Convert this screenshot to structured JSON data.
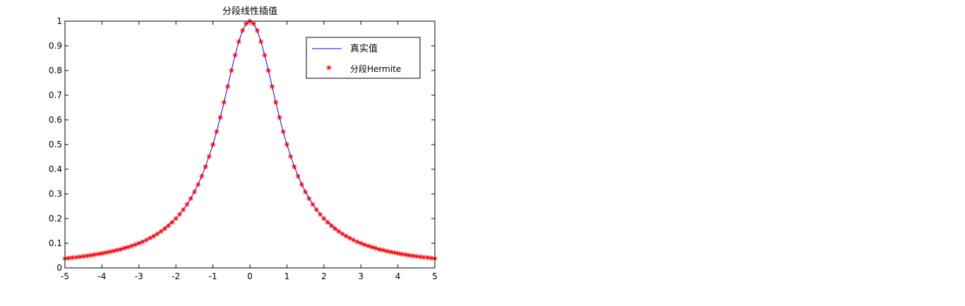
{
  "chart_data": {
    "type": "line",
    "title": "分段线性插值",
    "xlabel": "",
    "ylabel": "",
    "xlim": [
      -5,
      5
    ],
    "ylim": [
      0,
      1
    ],
    "grid": false,
    "legend_position": "top-right",
    "x_ticks": [
      -5,
      -4,
      -3,
      -2,
      -1,
      0,
      1,
      2,
      3,
      4,
      5
    ],
    "x_tick_labels": [
      "-5",
      "-4",
      "-3",
      "-2",
      "-1",
      "0",
      "1",
      "2",
      "3",
      "4",
      "5"
    ],
    "y_ticks": [
      0,
      0.1,
      0.2,
      0.3,
      0.4,
      0.5,
      0.6,
      0.7,
      0.8,
      0.9,
      1
    ],
    "y_tick_labels": [
      "0",
      "0.1",
      "0.2",
      "0.3",
      "0.4",
      "0.5",
      "0.6",
      "0.7",
      "0.8",
      "0.9",
      "1"
    ],
    "series": [
      {
        "name": "真实值",
        "style": "line",
        "color": "#0000ff",
        "x": [
          -5,
          -4.5,
          -4,
          -3.5,
          -3,
          -2.5,
          -2,
          -1.8,
          -1.6,
          -1.4,
          -1.2,
          -1,
          -0.9,
          -0.8,
          -0.7,
          -0.6,
          -0.5,
          -0.4,
          -0.3,
          -0.2,
          -0.1,
          0,
          0.1,
          0.2,
          0.3,
          0.4,
          0.5,
          0.6,
          0.7,
          0.8,
          0.9,
          1,
          1.2,
          1.4,
          1.6,
          1.8,
          2,
          2.5,
          3,
          3.5,
          4,
          4.5,
          5
        ],
        "y": [
          0.038,
          0.047,
          0.059,
          0.075,
          0.1,
          0.138,
          0.2,
          0.236,
          0.281,
          0.338,
          0.41,
          0.5,
          0.552,
          0.61,
          0.671,
          0.735,
          0.8,
          0.862,
          0.917,
          0.962,
          0.99,
          1,
          0.99,
          0.962,
          0.917,
          0.862,
          0.8,
          0.735,
          0.671,
          0.61,
          0.552,
          0.5,
          0.41,
          0.338,
          0.281,
          0.236,
          0.2,
          0.138,
          0.1,
          0.075,
          0.059,
          0.047,
          0.038
        ]
      },
      {
        "name": "分段Hermite",
        "style": "marker",
        "marker": "*",
        "color": "#ff0000",
        "x": [
          -5,
          -4.9,
          -4.8,
          -4.7,
          -4.6,
          -4.5,
          -4.4,
          -4.3,
          -4.2,
          -4.1,
          -4,
          -3.9,
          -3.8,
          -3.7,
          -3.6,
          -3.5,
          -3.4,
          -3.3,
          -3.2,
          -3.1,
          -3,
          -2.9,
          -2.8,
          -2.7,
          -2.6,
          -2.5,
          -2.4,
          -2.3,
          -2.2,
          -2.1,
          -2,
          -1.9,
          -1.8,
          -1.7,
          -1.6,
          -1.5,
          -1.4,
          -1.3,
          -1.2,
          -1.1,
          -1,
          -0.9,
          -0.8,
          -0.7,
          -0.6,
          -0.5,
          -0.4,
          -0.3,
          -0.2,
          -0.1,
          0,
          0.1,
          0.2,
          0.3,
          0.4,
          0.5,
          0.6,
          0.7,
          0.8,
          0.9,
          1,
          1.1,
          1.2,
          1.3,
          1.4,
          1.5,
          1.6,
          1.7,
          1.8,
          1.9,
          2,
          2.1,
          2.2,
          2.3,
          2.4,
          2.5,
          2.6,
          2.7,
          2.8,
          2.9,
          3,
          3.1,
          3.2,
          3.3,
          3.4,
          3.5,
          3.6,
          3.7,
          3.8,
          3.9,
          4,
          4.1,
          4.2,
          4.3,
          4.4,
          4.5,
          4.6,
          4.7,
          4.8,
          4.9,
          5
        ],
        "y": [
          0.038,
          0.04,
          0.042,
          0.043,
          0.045,
          0.047,
          0.049,
          0.051,
          0.054,
          0.056,
          0.059,
          0.062,
          0.065,
          0.068,
          0.072,
          0.075,
          0.08,
          0.084,
          0.089,
          0.094,
          0.1,
          0.106,
          0.113,
          0.121,
          0.129,
          0.138,
          0.148,
          0.159,
          0.171,
          0.185,
          0.2,
          0.217,
          0.236,
          0.257,
          0.281,
          0.308,
          0.338,
          0.372,
          0.41,
          0.452,
          0.5,
          0.552,
          0.61,
          0.671,
          0.735,
          0.8,
          0.862,
          0.917,
          0.962,
          0.99,
          1,
          0.99,
          0.962,
          0.917,
          0.862,
          0.8,
          0.735,
          0.671,
          0.61,
          0.552,
          0.5,
          0.452,
          0.41,
          0.372,
          0.338,
          0.308,
          0.281,
          0.257,
          0.236,
          0.217,
          0.2,
          0.185,
          0.171,
          0.159,
          0.148,
          0.138,
          0.129,
          0.121,
          0.113,
          0.106,
          0.1,
          0.094,
          0.089,
          0.084,
          0.08,
          0.075,
          0.072,
          0.068,
          0.065,
          0.062,
          0.059,
          0.056,
          0.054,
          0.051,
          0.049,
          0.047,
          0.045,
          0.043,
          0.042,
          0.04,
          0.038
        ]
      }
    ]
  }
}
